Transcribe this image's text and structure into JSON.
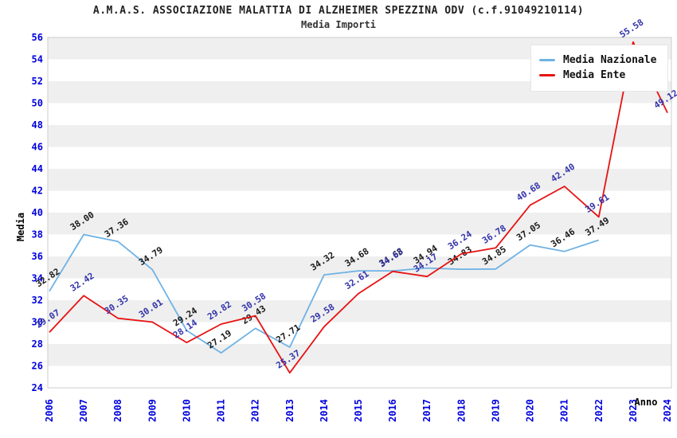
{
  "header": {
    "title": "A.M.A.S. ASSOCIAZIONE MALATTIA DI ALZHEIMER SPEZZINA ODV (c.f.91049210114)",
    "subtitle": "Media Importi"
  },
  "axes": {
    "y_label": "Media",
    "x_label": "Anno",
    "tick_color": "#0000dd",
    "axis_label_color": "#000000"
  },
  "legend": {
    "position": "top-right",
    "items": [
      {
        "label": "Media Nazionale"
      },
      {
        "label": "Media Ente"
      }
    ]
  },
  "colors": {
    "plot_border": "#cccccc",
    "band_fill": "#efefef",
    "background": "#ffffff",
    "title_color": "#222222"
  },
  "chart_data": {
    "type": "line",
    "title": "A.M.A.S. ASSOCIAZIONE MALATTIA DI ALZHEIMER SPEZZINA ODV (c.f.91049210114)",
    "subtitle": "Media Importi",
    "xlabel": "Anno",
    "ylabel": "Media",
    "x": [
      2006,
      2007,
      2008,
      2009,
      2010,
      2011,
      2012,
      2013,
      2014,
      2015,
      2016,
      2017,
      2018,
      2019,
      2020,
      2021,
      2022,
      2023,
      2024
    ],
    "ylim": [
      24,
      56
    ],
    "ytick_step": 2,
    "grid": "horizontal-alternating-bands",
    "legend_position": "top-right",
    "series": [
      {
        "name": "Media Nazionale",
        "color": "#6fb2e4",
        "label_color": "#1a1a1a",
        "values": [
          32.82,
          38.0,
          37.36,
          34.79,
          29.24,
          27.19,
          29.43,
          27.71,
          34.32,
          34.68,
          34.68,
          34.94,
          34.83,
          34.85,
          37.05,
          36.46,
          37.49,
          null,
          null
        ],
        "labels": [
          "32.82",
          "38.00",
          "37.36",
          "34.79",
          "29.24",
          "27.19",
          "29.43",
          "27.71",
          "34.32",
          "34.68",
          "34.68",
          "34.94",
          "34.83",
          "34.85",
          "37.05",
          "36.46",
          "37.49",
          null,
          null
        ]
      },
      {
        "name": "Media Ente",
        "color": "#e81212",
        "label_color": "#3333aa",
        "values": [
          29.07,
          32.42,
          30.35,
          30.01,
          28.14,
          29.82,
          30.58,
          25.37,
          29.58,
          32.61,
          34.63,
          34.17,
          36.24,
          36.78,
          40.68,
          42.4,
          39.61,
          55.58,
          49.12
        ],
        "labels": [
          "29.07",
          "32.42",
          "30.35",
          "30.01",
          "28.14",
          "29.82",
          "30.58",
          "25.37",
          "29.58",
          "32.61",
          "34.63",
          "34.17",
          "36.24",
          "36.78",
          "40.68",
          "42.40",
          "39.61",
          "55.58",
          "49.12"
        ]
      }
    ]
  }
}
